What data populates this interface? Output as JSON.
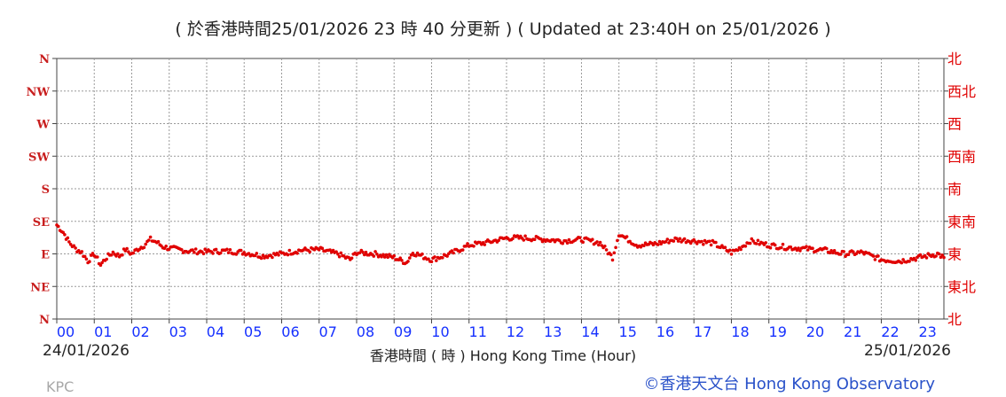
{
  "header": {
    "title": "( 於香港時間25/01/2026 23 時 40 分更新 ) ( Updated at 23:40H on 25/01/2026 )"
  },
  "footer": {
    "start_date": "24/01/2026",
    "end_date": "25/01/2026",
    "station": "KPC",
    "copyright": "©香港天文台 Hong Kong Observatory"
  },
  "colors": {
    "series": "#e00000",
    "left_axis": "#c81e1e",
    "right_axis": "#e00000",
    "hour_ticks": "#1530ff",
    "grid": "#9a9a9a"
  },
  "chart_data": {
    "type": "scatter",
    "xlabel": "香港時間 ( 時 ) Hong Kong Time (Hour)",
    "x_tick_labels": [
      "00",
      "01",
      "02",
      "03",
      "04",
      "05",
      "06",
      "07",
      "08",
      "09",
      "10",
      "11",
      "12",
      "13",
      "14",
      "15",
      "16",
      "17",
      "18",
      "19",
      "20",
      "21",
      "22",
      "23"
    ],
    "xlim": [
      0,
      23.67
    ],
    "ylim": [
      0,
      360
    ],
    "y_ticks": [
      0,
      45,
      90,
      135,
      180,
      225,
      270,
      315,
      360
    ],
    "y_tick_labels_left": [
      "N",
      "NE",
      "E",
      "SE",
      "S",
      "SW",
      "W",
      "NW",
      "N"
    ],
    "y_tick_labels_right": [
      "北",
      "東北",
      "東",
      "東南",
      "南",
      "西南",
      "西",
      "西北",
      "北"
    ],
    "grid": true,
    "series": [
      {
        "x": [
          0.0,
          0.17,
          0.33,
          0.5,
          0.67,
          0.83,
          1.0,
          1.17,
          1.33,
          1.5,
          1.67,
          1.83,
          2.0,
          2.17,
          2.33,
          2.5,
          2.67,
          2.83,
          3.0,
          3.5,
          4.0,
          4.5,
          5.0,
          5.5,
          6.0,
          6.5,
          7.0,
          7.5,
          7.83,
          8.0,
          8.5,
          9.0,
          9.33,
          9.5,
          10.0,
          10.5,
          11.0,
          11.5,
          12.0,
          12.5,
          13.0,
          13.5,
          14.0,
          14.5,
          14.83,
          15.0,
          15.17,
          15.5,
          16.0,
          16.5,
          17.0,
          17.5,
          18.0,
          18.17,
          18.5,
          19.0,
          19.5,
          20.0,
          20.5,
          21.0,
          21.5,
          22.0,
          22.5,
          23.0,
          23.5,
          23.67
        ],
        "y": [
          130,
          120,
          106,
          97,
          92,
          80,
          90,
          75,
          85,
          92,
          87,
          96,
          90,
          97,
          102,
          110,
          106,
          100,
          98,
          94,
          93,
          94,
          92,
          87,
          90,
          95,
          96,
          90,
          82,
          92,
          90,
          85,
          78,
          92,
          82,
          90,
          102,
          106,
          112,
          112,
          110,
          108,
          110,
          105,
          85,
          118,
          112,
          102,
          104,
          110,
          108,
          105,
          92,
          96,
          108,
          102,
          99,
          97,
          95,
          90,
          92,
          82,
          80,
          85,
          90,
          85
        ]
      }
    ]
  }
}
